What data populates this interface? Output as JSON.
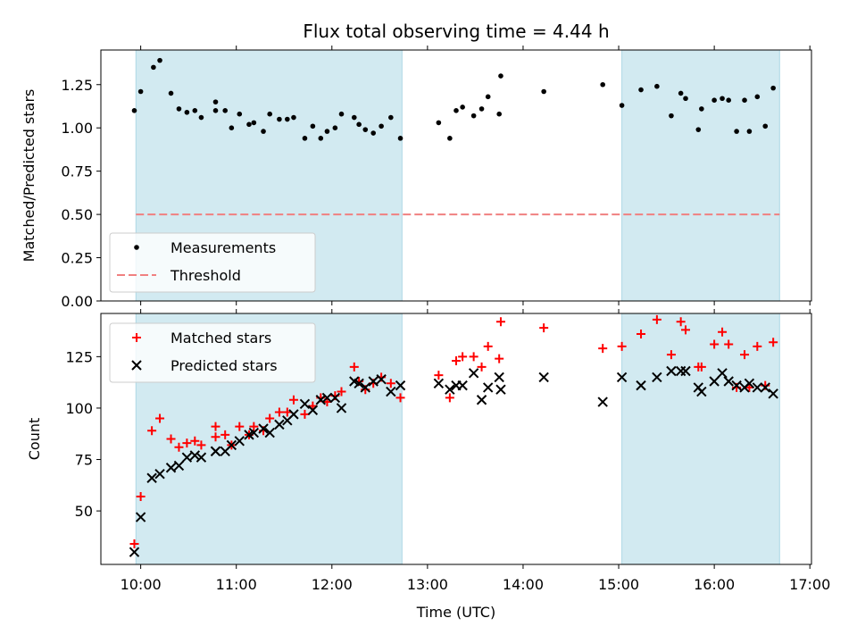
{
  "chart_data": {
    "type": "scatter",
    "title": "Flux total observing time = 4.44 h",
    "xlabel": "Time (UTC)",
    "x_ticks": [
      "10:00",
      "11:00",
      "12:00",
      "13:00",
      "14:00",
      "15:00",
      "16:00",
      "17:00"
    ],
    "x_range": [
      "09:35",
      "17:01"
    ],
    "shaded_intervals": [
      [
        "09:57",
        "12:44"
      ],
      [
        "15:02",
        "16:41"
      ]
    ],
    "shade_color": "#add8e6",
    "panels": [
      {
        "ylabel": "Matched/Predicted stars",
        "ylim": [
          0.0,
          1.45
        ],
        "y_ticks": [
          "0.00",
          "0.25",
          "0.50",
          "0.75",
          "1.00",
          "1.25"
        ],
        "legend": {
          "position": "lower-left",
          "entries": [
            "Measurements",
            "Threshold"
          ]
        },
        "series": [
          {
            "name": "Measurements",
            "marker": "dot",
            "color": "#000000",
            "points": [
              [
                "09:56",
                1.1
              ],
              [
                "10:00",
                1.21
              ],
              [
                "10:08",
                1.35
              ],
              [
                "10:12",
                1.39
              ],
              [
                "10:19",
                1.2
              ],
              [
                "10:24",
                1.11
              ],
              [
                "10:29",
                1.09
              ],
              [
                "10:34",
                1.1
              ],
              [
                "10:38",
                1.06
              ],
              [
                "10:47",
                1.1
              ],
              [
                "10:47",
                1.15
              ],
              [
                "10:53",
                1.1
              ],
              [
                "10:57",
                1.0
              ],
              [
                "11:02",
                1.08
              ],
              [
                "11:08",
                1.02
              ],
              [
                "11:11",
                1.03
              ],
              [
                "11:17",
                0.98
              ],
              [
                "11:21",
                1.08
              ],
              [
                "11:27",
                1.05
              ],
              [
                "11:32",
                1.05
              ],
              [
                "11:36",
                1.06
              ],
              [
                "11:43",
                0.94
              ],
              [
                "11:48",
                1.01
              ],
              [
                "11:53",
                0.94
              ],
              [
                "11:57",
                0.98
              ],
              [
                "12:02",
                1.0
              ],
              [
                "12:06",
                1.08
              ],
              [
                "12:14",
                1.06
              ],
              [
                "12:17",
                1.02
              ],
              [
                "12:21",
                0.99
              ],
              [
                "12:26",
                0.97
              ],
              [
                "12:31",
                1.01
              ],
              [
                "12:37",
                1.06
              ],
              [
                "12:43",
                0.94
              ],
              [
                "13:07",
                1.03
              ],
              [
                "13:14",
                0.94
              ],
              [
                "13:18",
                1.1
              ],
              [
                "13:22",
                1.12
              ],
              [
                "13:29",
                1.07
              ],
              [
                "13:34",
                1.11
              ],
              [
                "13:38",
                1.18
              ],
              [
                "13:45",
                1.08
              ],
              [
                "13:46",
                1.3
              ],
              [
                "14:13",
                1.21
              ],
              [
                "14:50",
                1.25
              ],
              [
                "15:02",
                1.13
              ],
              [
                "15:14",
                1.22
              ],
              [
                "15:24",
                1.24
              ],
              [
                "15:33",
                1.07
              ],
              [
                "15:39",
                1.2
              ],
              [
                "15:42",
                1.17
              ],
              [
                "15:50",
                0.99
              ],
              [
                "15:52",
                1.11
              ],
              [
                "16:00",
                1.16
              ],
              [
                "16:05",
                1.17
              ],
              [
                "16:09",
                1.16
              ],
              [
                "16:14",
                0.98
              ],
              [
                "16:19",
                1.16
              ],
              [
                "16:22",
                0.98
              ],
              [
                "16:27",
                1.18
              ],
              [
                "16:32",
                1.01
              ],
              [
                "16:37",
                1.23
              ]
            ]
          },
          {
            "name": "Threshold",
            "marker": "dashed-line",
            "color": "#f08080",
            "value": 0.5
          }
        ]
      },
      {
        "ylabel": "Count",
        "ylim": [
          24,
          146
        ],
        "y_ticks": [
          "50",
          "75",
          "100",
          "125"
        ],
        "legend": {
          "position": "top-left",
          "entries": [
            "Matched stars",
            "Predicted stars"
          ]
        },
        "series": [
          {
            "name": "Matched stars",
            "marker": "plus",
            "color": "#ff0000",
            "points": [
              [
                "09:56",
                34
              ],
              [
                "10:00",
                57
              ],
              [
                "10:07",
                89
              ],
              [
                "10:12",
                95
              ],
              [
                "10:19",
                85
              ],
              [
                "10:24",
                81
              ],
              [
                "10:29",
                83
              ],
              [
                "10:34",
                84
              ],
              [
                "10:38",
                82
              ],
              [
                "10:47",
                86
              ],
              [
                "10:47",
                91
              ],
              [
                "10:53",
                87
              ],
              [
                "10:57",
                82
              ],
              [
                "11:02",
                91
              ],
              [
                "11:08",
                87
              ],
              [
                "11:11",
                91
              ],
              [
                "11:17",
                89
              ],
              [
                "11:21",
                95
              ],
              [
                "11:27",
                98
              ],
              [
                "11:32",
                98
              ],
              [
                "11:36",
                104
              ],
              [
                "11:43",
                97
              ],
              [
                "11:48",
                101
              ],
              [
                "11:53",
                105
              ],
              [
                "11:57",
                103
              ],
              [
                "12:02",
                106
              ],
              [
                "12:06",
                108
              ],
              [
                "12:14",
                120
              ],
              [
                "12:17",
                113
              ],
              [
                "12:21",
                109
              ],
              [
                "12:26",
                112
              ],
              [
                "12:31",
                115
              ],
              [
                "12:37",
                112
              ],
              [
                "12:43",
                105
              ],
              [
                "13:07",
                116
              ],
              [
                "13:14",
                105
              ],
              [
                "13:18",
                123
              ],
              [
                "13:22",
                125
              ],
              [
                "13:29",
                125
              ],
              [
                "13:34",
                120
              ],
              [
                "13:38",
                130
              ],
              [
                "13:45",
                124
              ],
              [
                "13:46",
                142
              ],
              [
                "14:13",
                139
              ],
              [
                "14:50",
                129
              ],
              [
                "15:02",
                130
              ],
              [
                "15:14",
                136
              ],
              [
                "15:24",
                143
              ],
              [
                "15:33",
                126
              ],
              [
                "15:39",
                142
              ],
              [
                "15:42",
                138
              ],
              [
                "15:50",
                120
              ],
              [
                "15:52",
                120
              ],
              [
                "16:00",
                131
              ],
              [
                "16:05",
                137
              ],
              [
                "16:09",
                131
              ],
              [
                "16:14",
                110
              ],
              [
                "16:19",
                126
              ],
              [
                "16:22",
                110
              ],
              [
                "16:27",
                130
              ],
              [
                "16:32",
                111
              ],
              [
                "16:37",
                132
              ]
            ]
          },
          {
            "name": "Predicted stars",
            "marker": "x",
            "color": "#000000",
            "points": [
              [
                "09:56",
                30
              ],
              [
                "10:00",
                47
              ],
              [
                "10:07",
                66
              ],
              [
                "10:12",
                68
              ],
              [
                "10:19",
                71
              ],
              [
                "10:24",
                72
              ],
              [
                "10:29",
                76
              ],
              [
                "10:34",
                77
              ],
              [
                "10:38",
                76
              ],
              [
                "10:47",
                79
              ],
              [
                "10:47",
                79
              ],
              [
                "10:53",
                79
              ],
              [
                "10:57",
                82
              ],
              [
                "11:02",
                84
              ],
              [
                "11:08",
                87
              ],
              [
                "11:11",
                88
              ],
              [
                "11:17",
                90
              ],
              [
                "11:21",
                88
              ],
              [
                "11:27",
                92
              ],
              [
                "11:32",
                94
              ],
              [
                "11:36",
                97
              ],
              [
                "11:43",
                102
              ],
              [
                "11:48",
                99
              ],
              [
                "11:53",
                104
              ],
              [
                "11:57",
                105
              ],
              [
                "12:02",
                105
              ],
              [
                "12:06",
                100
              ],
              [
                "12:14",
                113
              ],
              [
                "12:17",
                112
              ],
              [
                "12:21",
                110
              ],
              [
                "12:26",
                113
              ],
              [
                "12:31",
                114
              ],
              [
                "12:37",
                108
              ],
              [
                "12:43",
                111
              ],
              [
                "13:07",
                112
              ],
              [
                "13:14",
                109
              ],
              [
                "13:18",
                111
              ],
              [
                "13:22",
                111
              ],
              [
                "13:29",
                117
              ],
              [
                "13:34",
                104
              ],
              [
                "13:38",
                110
              ],
              [
                "13:45",
                115
              ],
              [
                "13:46",
                109
              ],
              [
                "14:13",
                115
              ],
              [
                "14:50",
                103
              ],
              [
                "15:02",
                115
              ],
              [
                "15:14",
                111
              ],
              [
                "15:24",
                115
              ],
              [
                "15:33",
                118
              ],
              [
                "15:39",
                118
              ],
              [
                "15:42",
                118
              ],
              [
                "15:50",
                110
              ],
              [
                "15:52",
                108
              ],
              [
                "16:00",
                113
              ],
              [
                "16:05",
                117
              ],
              [
                "16:09",
                113
              ],
              [
                "16:14",
                111
              ],
              [
                "16:19",
                110
              ],
              [
                "16:22",
                112
              ],
              [
                "16:27",
                110
              ],
              [
                "16:32",
                110
              ],
              [
                "16:37",
                107
              ]
            ]
          }
        ]
      }
    ]
  }
}
